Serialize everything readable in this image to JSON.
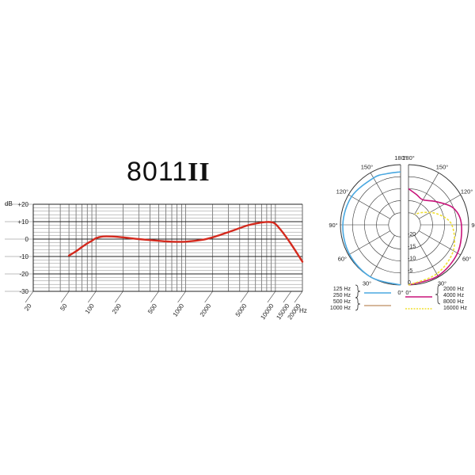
{
  "model": {
    "number": "8011",
    "roman": "II"
  },
  "chart_data": [
    {
      "type": "line",
      "title": "8011II",
      "ylabel": "dB",
      "xlabel": "Hz",
      "x_scale": "log",
      "xlim": [
        20,
        20000
      ],
      "ylim": [
        -30,
        20
      ],
      "y_ticks": [
        20,
        10,
        0,
        -10,
        -20,
        -30
      ],
      "y_tick_labels": [
        "+20",
        "+10",
        "0",
        "-10",
        "-20",
        "-30"
      ],
      "x_ticks": [
        20,
        50,
        100,
        200,
        500,
        1000,
        2000,
        5000,
        10000,
        15000,
        20000
      ],
      "x_tick_labels": [
        "20",
        "50",
        "100",
        "200",
        "500",
        "1000",
        "2000",
        "5000",
        "10000",
        "15000",
        "20000"
      ],
      "grid": true,
      "series": [
        {
          "color": "#d42a1e",
          "x": [
            50,
            60,
            70,
            80,
            90,
            100,
            120,
            150,
            200,
            300,
            500,
            700,
            1000,
            1500,
            2000,
            3000,
            5000,
            7000,
            8000,
            9000,
            10000,
            12000,
            15000,
            20000
          ],
          "y": [
            -9.5,
            -7,
            -4.5,
            -2.5,
            -1,
            0.5,
            1.5,
            1.5,
            1,
            0,
            -1,
            -1.5,
            -1.5,
            -0.5,
            1,
            4,
            8,
            9.5,
            9.8,
            9.7,
            8.7,
            4,
            -3,
            -13
          ]
        }
      ]
    },
    {
      "type": "polar",
      "angle_labels": [
        "0°",
        "30°",
        "60°",
        "90°",
        "120°",
        "150°",
        "180°"
      ],
      "radial_labels": [
        "-20",
        "-15",
        "-10",
        "-5",
        "0"
      ],
      "radial_range": [
        -25,
        0
      ],
      "legend": [
        {
          "label": "125 Hz",
          "side": "left",
          "color": "#4aa8e0",
          "group": 1
        },
        {
          "label": "250 Hz",
          "side": "left",
          "color": "#4aa8e0",
          "group": 1
        },
        {
          "label": "500 Hz",
          "side": "left",
          "color": "#c8a07a",
          "group": 2
        },
        {
          "label": "1000 Hz",
          "side": "left",
          "color": "#c8a07a",
          "group": 2
        },
        {
          "label": "2000 Hz",
          "side": "right",
          "color": "#c8147a",
          "group": 3
        },
        {
          "label": "4000 Hz",
          "side": "right",
          "color": "#c8147a",
          "group": 3
        },
        {
          "label": "8000 Hz",
          "side": "right",
          "color": "#c8147a",
          "group": 3
        },
        {
          "label": "16000 Hz",
          "side": "right",
          "color": "#f0e030",
          "group": 4
        }
      ],
      "series": [
        {
          "name": "125 Hz / 250 Hz",
          "side": "left",
          "color": "#4aa8e0",
          "dashed": false,
          "angles": [
            0,
            30,
            60,
            90,
            120,
            150,
            165,
            180
          ],
          "levels": [
            0,
            0,
            -0.5,
            -1,
            -1.5,
            -2.5,
            -3,
            -3
          ]
        },
        {
          "name": "2000 Hz / 4000 Hz / 8000 Hz",
          "side": "right",
          "color": "#c8147a",
          "dashed": false,
          "angles": [
            0,
            30,
            60,
            90,
            110,
            130,
            150,
            165,
            180
          ],
          "levels": [
            0,
            -0.5,
            -1.5,
            -3,
            -5,
            -10,
            -13,
            -12,
            -10
          ]
        },
        {
          "name": "16000 Hz",
          "side": "right",
          "color": "#f0e030",
          "dashed": true,
          "angles": [
            0,
            30,
            60,
            90,
            110,
            130,
            150
          ],
          "levels": [
            0,
            -1.5,
            -3.5,
            -7,
            -12,
            -17,
            -20
          ]
        }
      ]
    }
  ]
}
